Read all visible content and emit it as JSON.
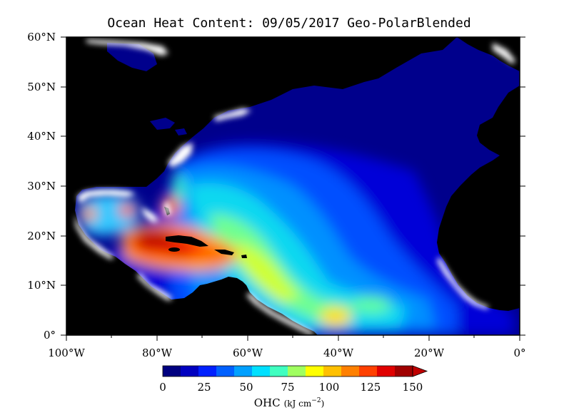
{
  "title": "Ocean Heat Content: 09/05/2017 Geo-PolarBlended",
  "map": {
    "lon_range": [
      -100,
      0
    ],
    "lat_range": [
      0,
      60
    ],
    "x_ticks": [
      "100°W",
      "80°W",
      "60°W",
      "40°W",
      "20°W",
      "0°"
    ],
    "y_ticks": [
      "60°N",
      "50°N",
      "40°N",
      "30°N",
      "20°N",
      "10°N",
      "0°"
    ]
  },
  "colorbar": {
    "min": 0,
    "max": 150,
    "ticks": [
      "0",
      "25",
      "50",
      "75",
      "100",
      "125",
      "150"
    ],
    "label_main": "OHC",
    "label_units": "(kJ cm",
    "label_exp": "−2",
    "label_close": ")",
    "colors": [
      "#000080",
      "#0000c0",
      "#0020ff",
      "#0060ff",
      "#00a0ff",
      "#00e0ff",
      "#40ffc0",
      "#a0ff60",
      "#ffff00",
      "#ffc000",
      "#ff8000",
      "#ff4000",
      "#e00000",
      "#a00000"
    ]
  },
  "colors": {
    "land": "#000000",
    "ocean_low": "#00008c",
    "no_data": "#ffffff"
  }
}
